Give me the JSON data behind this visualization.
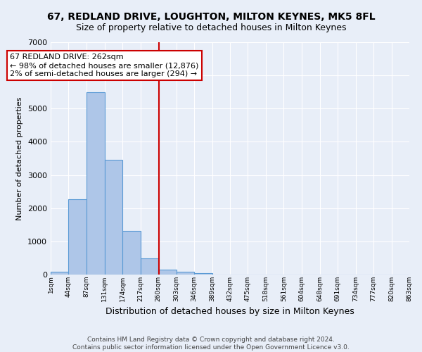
{
  "title": "67, REDLAND DRIVE, LOUGHTON, MILTON KEYNES, MK5 8FL",
  "subtitle": "Size of property relative to detached houses in Milton Keynes",
  "xlabel": "Distribution of detached houses by size in Milton Keynes",
  "ylabel": "Number of detached properties",
  "bin_edges": [
    1,
    44,
    87,
    131,
    174,
    217,
    260,
    303,
    346,
    389,
    432,
    475,
    518,
    561,
    604,
    648,
    691,
    734,
    777,
    820,
    863
  ],
  "bin_counts": [
    80,
    2270,
    5490,
    3450,
    1320,
    490,
    155,
    85,
    40,
    0,
    0,
    0,
    0,
    0,
    0,
    0,
    0,
    0,
    0,
    0
  ],
  "bar_color": "#aec6e8",
  "bar_edge_color": "#5b9bd5",
  "property_size": 262,
  "vline_color": "#cc0000",
  "annotation_text": "67 REDLAND DRIVE: 262sqm\n← 98% of detached houses are smaller (12,876)\n2% of semi-detached houses are larger (294) →",
  "annotation_box_color": "#ffffff",
  "annotation_box_edge_color": "#cc0000",
  "ylim": [
    0,
    7000
  ],
  "yticks": [
    0,
    1000,
    2000,
    3000,
    4000,
    5000,
    6000,
    7000
  ],
  "tick_labels": [
    "1sqm",
    "44sqm",
    "87sqm",
    "131sqm",
    "174sqm",
    "217sqm",
    "260sqm",
    "303sqm",
    "346sqm",
    "389sqm",
    "432sqm",
    "475sqm",
    "518sqm",
    "561sqm",
    "604sqm",
    "648sqm",
    "691sqm",
    "734sqm",
    "777sqm",
    "820sqm",
    "863sqm"
  ],
  "footer_line1": "Contains HM Land Registry data © Crown copyright and database right 2024.",
  "footer_line2": "Contains public sector information licensed under the Open Government Licence v3.0.",
  "bg_color": "#e8eef8",
  "grid_color": "#ffffff",
  "title_fontsize": 10,
  "subtitle_fontsize": 9,
  "annotation_fontsize": 8,
  "ylabel_fontsize": 8,
  "xlabel_fontsize": 9,
  "footer_fontsize": 6.5
}
